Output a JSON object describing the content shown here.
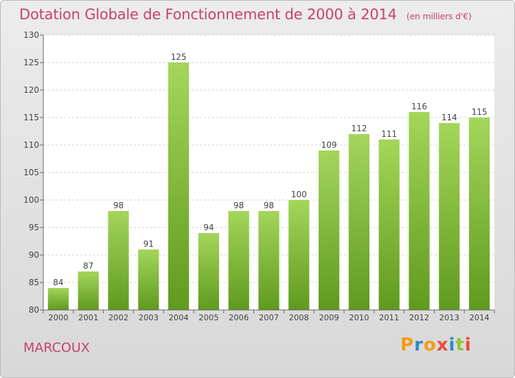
{
  "title": "Dotation Globale de Fonctionnement de 2000 à 2014",
  "unit": "(en milliers d'€)",
  "commune": "MARCOUX",
  "brand": {
    "letters": [
      "P",
      "r",
      "o",
      "x",
      "i",
      "t",
      "i"
    ],
    "colors": [
      "#f39c12",
      "#2e8bc9",
      "#f39c12",
      "#e74c3c",
      "#2e8bc9",
      "#8dc63f",
      "#e74c3c"
    ]
  },
  "colors": {
    "accent": "#c94071",
    "bar_top": "#a4d65a",
    "bar_bottom": "#5f9a1e"
  },
  "chart_data": {
    "type": "bar",
    "categories": [
      "2000",
      "2001",
      "2002",
      "2003",
      "2004",
      "2005",
      "2006",
      "2007",
      "2008",
      "2009",
      "2010",
      "2011",
      "2012",
      "2013",
      "2014"
    ],
    "values": [
      84,
      87,
      98,
      91,
      125,
      94,
      98,
      98,
      100,
      109,
      112,
      111,
      116,
      114,
      115
    ],
    "ylim": [
      80,
      130
    ],
    "yticks": [
      80,
      85,
      90,
      95,
      100,
      105,
      110,
      115,
      120,
      125,
      130
    ],
    "grid": true,
    "title": "Dotation Globale de Fonctionnement de 2000 à 2014",
    "xlabel": "",
    "ylabel": ""
  }
}
